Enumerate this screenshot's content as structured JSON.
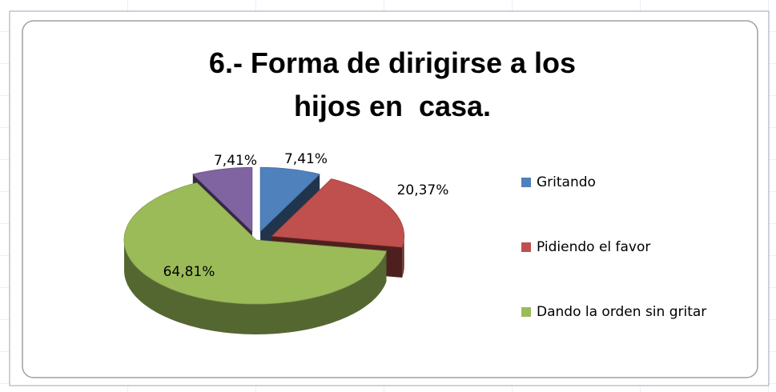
{
  "chart_data": {
    "type": "pie",
    "title": "6.- Forma de dirigirse a los\nhijos en  casa.",
    "categories": [
      "Gritando",
      "Pidiendo el favor",
      "Dando la orden sin gritar",
      null
    ],
    "values": [
      7.41,
      20.37,
      64.81,
      7.41
    ],
    "value_labels": [
      "7,41%",
      "20,37%",
      "64,81%",
      "7,41%"
    ],
    "colors": [
      "#4f81bd",
      "#c0504d",
      "#9bbb59",
      "#8064a2"
    ],
    "legend": "right"
  }
}
